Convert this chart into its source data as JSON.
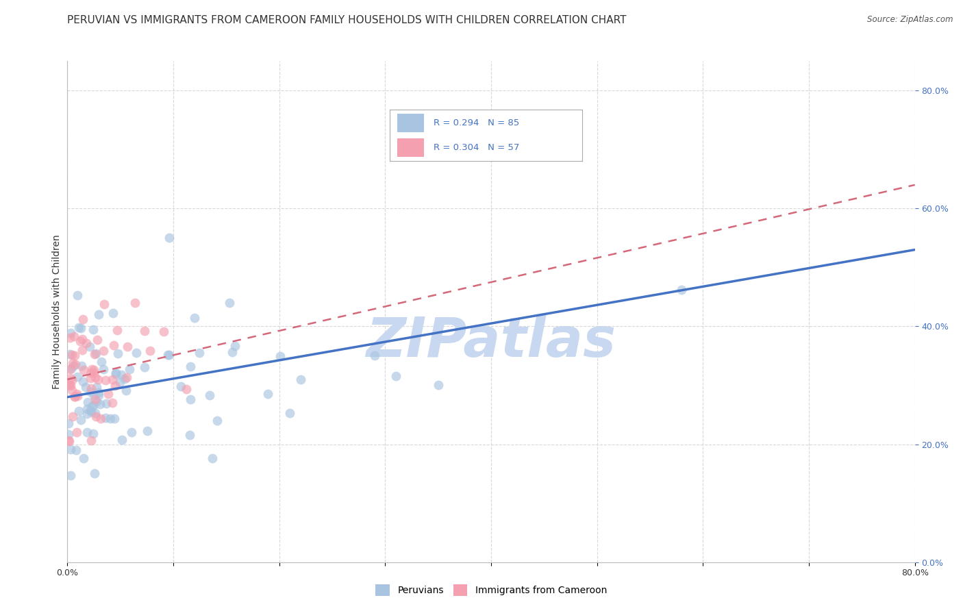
{
  "title": "PERUVIAN VS IMMIGRANTS FROM CAMEROON FAMILY HOUSEHOLDS WITH CHILDREN CORRELATION CHART",
  "source": "Source: ZipAtlas.com",
  "ylabel": "Family Households with Children",
  "xlim": [
    0.0,
    0.8
  ],
  "ylim": [
    0.0,
    0.85
  ],
  "blue_scatter_color": "#a8c4e0",
  "pink_scatter_color": "#f4a0b0",
  "blue_line_color": "#4472c4",
  "pink_line_color": "#d4687a",
  "watermark_text": "ZIPatlas",
  "watermark_color": "#c8d8f0",
  "background_color": "#ffffff",
  "grid_color": "#d8d8d8",
  "title_fontsize": 11,
  "axis_label_fontsize": 10,
  "tick_color": "#4472c4",
  "tick_fontsize": 9,
  "blue_R": 0.294,
  "blue_N": 85,
  "pink_R": 0.304,
  "pink_N": 57,
  "blue_line_x0": 0.0,
  "blue_line_y0": 0.28,
  "blue_line_x1": 0.8,
  "blue_line_y1": 0.53,
  "pink_line_x0": 0.0,
  "pink_line_y0": 0.31,
  "pink_line_x1": 0.8,
  "pink_line_y1": 0.64,
  "scatter_marker_size": 100,
  "scatter_alpha": 0.65
}
